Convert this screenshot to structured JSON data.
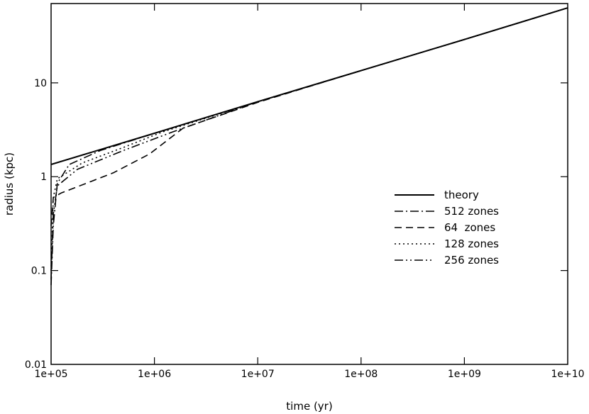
{
  "chart_data": {
    "type": "line",
    "title": "",
    "xlabel": "time (yr)",
    "ylabel": "radius (kpc)",
    "x_scale": "log",
    "y_scale": "log",
    "xlim": [
      100000,
      10000000000
    ],
    "ylim": [
      0.01,
      70
    ],
    "x_ticks": [
      {
        "value": 100000,
        "label": "1e+05"
      },
      {
        "value": 1000000,
        "label": "1e+06"
      },
      {
        "value": 10000000,
        "label": "1e+07"
      },
      {
        "value": 100000000,
        "label": "1e+08"
      },
      {
        "value": 1000000000,
        "label": "1e+09"
      },
      {
        "value": 10000000000,
        "label": "1e+10"
      }
    ],
    "y_ticks": [
      {
        "value": 0.01,
        "label": "0.01"
      },
      {
        "value": 0.1,
        "label": "0.1"
      },
      {
        "value": 1,
        "label": "1"
      },
      {
        "value": 10,
        "label": "10"
      }
    ],
    "grid": false,
    "legend_position": "right",
    "series": [
      {
        "name": "theory",
        "dash": "solid",
        "points": [
          [
            100000,
            1.35
          ],
          [
            1000000,
            2.9
          ],
          [
            10000000,
            6.3
          ],
          [
            100000000,
            13.5
          ],
          [
            1000000000,
            29
          ],
          [
            10000000000,
            63
          ]
        ]
      },
      {
        "name": "512 zones",
        "dash": "dashdot",
        "points": [
          [
            100000,
            0.07
          ],
          [
            105000,
            0.3
          ],
          [
            115000,
            0.85
          ],
          [
            150000,
            1.35
          ],
          [
            300000,
            1.9
          ],
          [
            1000000,
            2.9
          ],
          [
            10000000,
            6.3
          ],
          [
            100000000,
            13.5
          ],
          [
            1000000000,
            29
          ],
          [
            10000000000,
            63
          ]
        ]
      },
      {
        "name": "64  zones",
        "dash": "dash",
        "points": [
          [
            100000,
            0.3
          ],
          [
            105000,
            0.6
          ],
          [
            125000,
            0.67
          ],
          [
            400000,
            1.1
          ],
          [
            900000,
            1.75
          ],
          [
            1900000,
            3.3
          ],
          [
            10000000,
            6.2
          ],
          [
            100000000,
            13.5
          ],
          [
            1000000000,
            29
          ],
          [
            10000000000,
            63
          ]
        ]
      },
      {
        "name": "128 zones",
        "dash": "dot",
        "points": [
          [
            100000,
            0.1
          ],
          [
            105000,
            0.6
          ],
          [
            115000,
            0.95
          ],
          [
            200000,
            1.4
          ],
          [
            500000,
            2.05
          ],
          [
            1200000,
            3.0
          ],
          [
            10000000,
            6.3
          ],
          [
            100000000,
            13.5
          ],
          [
            1000000000,
            29
          ],
          [
            10000000000,
            63
          ]
        ]
      },
      {
        "name": "256 zones",
        "dash": "dashdotdot",
        "points": [
          [
            100000,
            0.08
          ],
          [
            105000,
            0.4
          ],
          [
            115000,
            0.8
          ],
          [
            180000,
            1.2
          ],
          [
            500000,
            1.9
          ],
          [
            1500000,
            3.0
          ],
          [
            10000000,
            6.3
          ],
          [
            100000000,
            13.5
          ],
          [
            1000000000,
            29
          ],
          [
            10000000000,
            63
          ]
        ]
      }
    ]
  }
}
